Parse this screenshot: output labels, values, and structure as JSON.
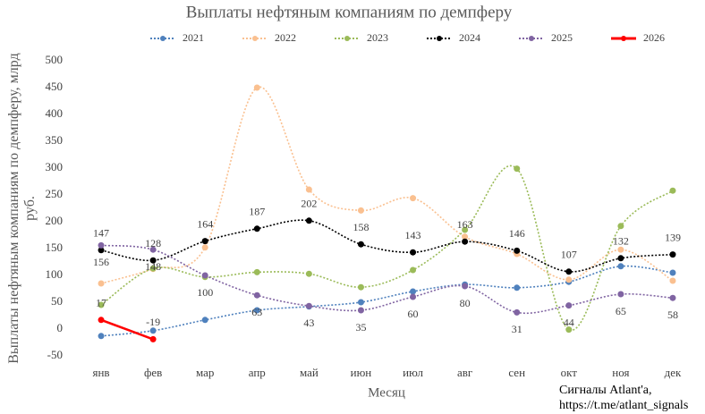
{
  "chart_data": {
    "type": "line",
    "title": "Выплаты нефтяным компаниям по демпферу",
    "y_label": "Выплаты нефтяным компаниям по демпферу, млрд руб.",
    "x_label": "Месяц",
    "source": [
      "Сигналы Atlant'a,",
      "https://t.me/atlant_signals"
    ],
    "categories": [
      "янв",
      "фев",
      "мар",
      "апр",
      "май",
      "июн",
      "июл",
      "авг",
      "сен",
      "окт",
      "ноя",
      "дек"
    ],
    "ylim": [
      -50,
      500
    ],
    "yticks": [
      -50,
      0,
      50,
      100,
      150,
      200,
      250,
      300,
      350,
      400,
      450,
      500
    ],
    "series": [
      {
        "name": "2021",
        "color": "#4f81bd",
        "dashed": true,
        "values": [
          -13,
          -3,
          17,
          35,
          42,
          50,
          70,
          83,
          77,
          88,
          117,
          105
        ]
      },
      {
        "name": "2022",
        "color": "#fac090",
        "dashed": true,
        "values": [
          85,
          112,
          152,
          450,
          260,
          221,
          244,
          172,
          140,
          92,
          148,
          90
        ]
      },
      {
        "name": "2023",
        "color": "#9bbb59",
        "dashed": true,
        "values": [
          45,
          113,
          97,
          106,
          103,
          78,
          110,
          185,
          299,
          -1,
          192,
          258
        ]
      },
      {
        "name": "2024",
        "color": "#000000",
        "dashed": true,
        "show_labels": true,
        "label_position": "above",
        "values": [
          147,
          128,
          164,
          187,
          202,
          158,
          143,
          163,
          146,
          107,
          132,
          139
        ]
      },
      {
        "name": "2025",
        "color": "#8064a2",
        "dashed": true,
        "show_labels": true,
        "label_position": "below",
        "values": [
          156,
          148,
          100,
          63,
          43,
          35,
          60,
          80,
          31,
          44,
          65,
          58
        ]
      },
      {
        "name": "2026",
        "color": "#ff0000",
        "dashed": false,
        "show_labels": true,
        "label_position": "above",
        "values": [
          17,
          -19,
          null,
          null,
          null,
          null,
          null,
          null,
          null,
          null,
          null,
          null
        ]
      }
    ]
  }
}
